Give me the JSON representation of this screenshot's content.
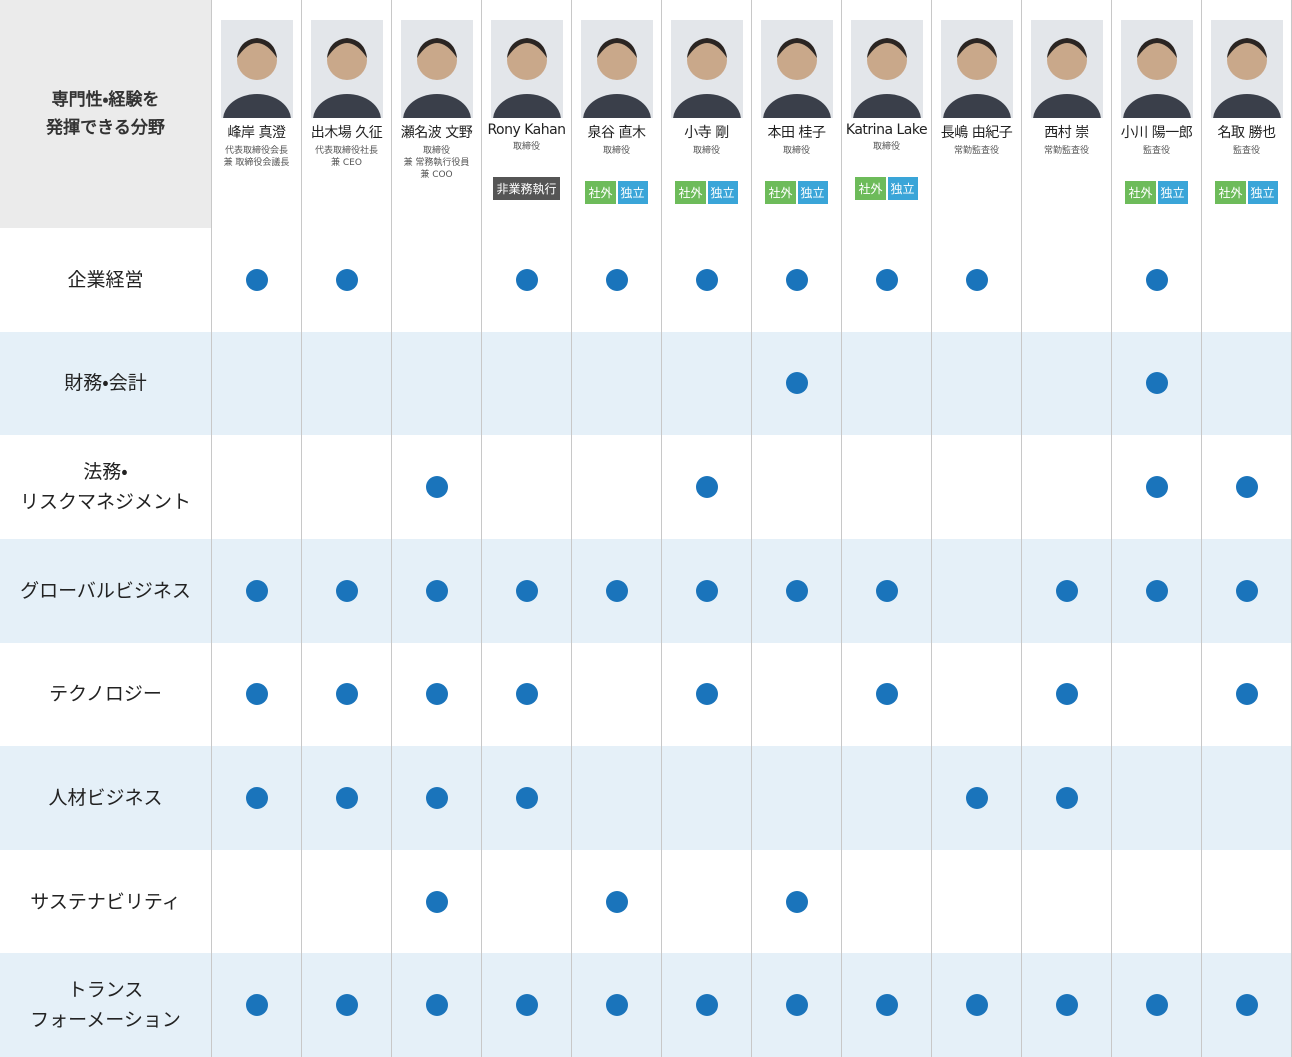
{
  "header": {
    "title": "専門性・経験を\n発揮できる分野"
  },
  "members": [
    {
      "name": "峰岸 真澄",
      "role": "代表取締役会長\n兼 取締役会議長",
      "tags": []
    },
    {
      "name": "出木場 久征",
      "role": "代表取締役社長\n兼 CEO",
      "tags": []
    },
    {
      "name": "瀬名波 文野",
      "role": "取締役\n兼 常務執行役員\n兼 COO",
      "tags": []
    },
    {
      "name": "Rony Kahan",
      "role": "取締役",
      "tags": [
        {
          "text": "非業務執行",
          "color": "#555555"
        }
      ]
    },
    {
      "name": "泉谷 直木",
      "role": "取締役",
      "tags": [
        {
          "text": "社外",
          "color": "#6dbb5a"
        },
        {
          "text": "独立",
          "color": "#3aa5d8"
        }
      ]
    },
    {
      "name": "小寺 剛",
      "role": "取締役",
      "tags": [
        {
          "text": "社外",
          "color": "#6dbb5a"
        },
        {
          "text": "独立",
          "color": "#3aa5d8"
        }
      ]
    },
    {
      "name": "本田 桂子",
      "role": "取締役",
      "tags": [
        {
          "text": "社外",
          "color": "#6dbb5a"
        },
        {
          "text": "独立",
          "color": "#3aa5d8"
        }
      ]
    },
    {
      "name": "Katrina Lake",
      "role": "取締役",
      "tags": [
        {
          "text": "社外",
          "color": "#6dbb5a"
        },
        {
          "text": "独立",
          "color": "#3aa5d8"
        }
      ]
    },
    {
      "name": "長嶋 由紀子",
      "role": "常勤監査役",
      "tags": []
    },
    {
      "name": "西村 崇",
      "role": "常勤監査役",
      "tags": []
    },
    {
      "name": "小川 陽一郎",
      "role": "監査役",
      "tags": [
        {
          "text": "社外",
          "color": "#6dbb5a"
        },
        {
          "text": "独立",
          "color": "#3aa5d8"
        }
      ]
    },
    {
      "name": "名取 勝也",
      "role": "監査役",
      "tags": [
        {
          "text": "社外",
          "color": "#6dbb5a"
        },
        {
          "text": "独立",
          "color": "#3aa5d8"
        }
      ]
    }
  ],
  "rows": [
    {
      "label": "企業経営",
      "cells": [
        true,
        true,
        false,
        true,
        true,
        true,
        true,
        true,
        true,
        false,
        true,
        false
      ]
    },
    {
      "label": "財務・会計",
      "cells": [
        false,
        false,
        false,
        false,
        false,
        false,
        true,
        false,
        false,
        false,
        true,
        false
      ]
    },
    {
      "label": "法務・\nリスクマネジメント",
      "cells": [
        false,
        false,
        true,
        false,
        false,
        true,
        false,
        false,
        false,
        false,
        true,
        true
      ]
    },
    {
      "label": "グローバルビジネス",
      "cells": [
        true,
        true,
        true,
        true,
        true,
        true,
        true,
        true,
        false,
        true,
        true,
        true
      ]
    },
    {
      "label": "テクノロジー",
      "cells": [
        true,
        true,
        true,
        true,
        false,
        true,
        false,
        true,
        false,
        true,
        false,
        true
      ]
    },
    {
      "label": "人材ビジネス",
      "cells": [
        true,
        true,
        true,
        true,
        false,
        false,
        false,
        false,
        true,
        true,
        false,
        false
      ]
    },
    {
      "label": "サステナビリティ",
      "cells": [
        false,
        false,
        true,
        false,
        true,
        false,
        true,
        false,
        false,
        false,
        false,
        false
      ]
    },
    {
      "label": "トランス\nフォーメーション",
      "cells": [
        true,
        true,
        true,
        true,
        true,
        true,
        true,
        true,
        true,
        true,
        true,
        true
      ]
    }
  ],
  "dot_color": "#1a74bb",
  "stripe_color": "#e5f0f8"
}
